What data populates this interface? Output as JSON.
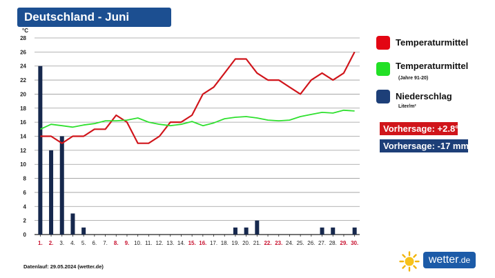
{
  "title": "Deutschland - Juni",
  "legend": [
    {
      "label": "Temperaturmittel",
      "sub": "",
      "color": "#e30613"
    },
    {
      "label": "Temperaturmittel",
      "sub": "(Jahre 91-20)",
      "color": "#22e026"
    },
    {
      "label": "Niederschlag",
      "sub": "Liter/m²",
      "color": "#1d3f78"
    }
  ],
  "forecast": {
    "temp": "Vorhersage: +2.8°",
    "temp_color": "#d0151b",
    "precip": "Vorhersage: -17 mm",
    "precip_color": "#1d3f78"
  },
  "footer": "Datenlauf: 29.05.2024 (wetter.de)",
  "logo": {
    "name": "wetter",
    "tld": ".de"
  },
  "chart_data": {
    "type": "line",
    "ylabel": "°C",
    "ylim": [
      0,
      28
    ],
    "yticks": [
      0,
      2,
      4,
      6,
      8,
      10,
      12,
      14,
      16,
      18,
      20,
      22,
      24,
      26,
      28
    ],
    "grid": true,
    "categories": [
      "1.",
      "2.",
      "3.",
      "4.",
      "5.",
      "6.",
      "7.",
      "8.",
      "9.",
      "10.",
      "11.",
      "12.",
      "13.",
      "14.",
      "15.",
      "16.",
      "17.",
      "18.",
      "19.",
      "20.",
      "21.",
      "22.",
      "23.",
      "24.",
      "25.",
      "26.",
      "27.",
      "28.",
      "29.",
      "30."
    ],
    "weekend_days": [
      1,
      2,
      8,
      9,
      15,
      16,
      22,
      23,
      29,
      30
    ],
    "weekend_color": "#c8102e",
    "series": [
      {
        "name": "Temperaturmittel",
        "kind": "line",
        "color": "#d0151b",
        "values": [
          14,
          14,
          13,
          14,
          14,
          15,
          15,
          17,
          16,
          13,
          13,
          14,
          16,
          16,
          17,
          20,
          21,
          23,
          25,
          25,
          23,
          22,
          22,
          21,
          20,
          22,
          23,
          22,
          23,
          26
        ]
      },
      {
        "name": "Temperaturmittel (Jahre 91-20)",
        "kind": "line",
        "color": "#2ee02e",
        "values": [
          15,
          15.7,
          15.5,
          15.3,
          15.6,
          15.8,
          16.2,
          16.2,
          16.3,
          16.6,
          16.0,
          15.7,
          15.5,
          15.7,
          16.1,
          15.5,
          15.9,
          16.5,
          16.7,
          16.8,
          16.6,
          16.3,
          16.2,
          16.3,
          16.8,
          17.1,
          17.4,
          17.3,
          17.7,
          17.6
        ]
      },
      {
        "name": "Niederschlag",
        "kind": "bar",
        "color": "#16284d",
        "values": [
          24,
          12,
          14,
          3,
          1,
          0,
          0,
          0,
          0,
          0,
          0,
          0,
          0,
          0,
          0,
          0,
          0,
          0,
          1,
          1,
          2,
          0,
          0,
          0,
          0,
          0,
          1,
          1,
          0,
          1
        ]
      }
    ]
  }
}
